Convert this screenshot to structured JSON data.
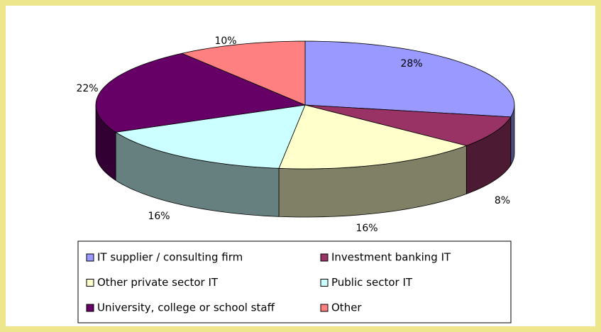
{
  "chart_data": {
    "type": "pie3d",
    "categories": [
      "IT supplier / consulting firm",
      "Investment banking IT",
      "Other private sector IT",
      "Public sector IT",
      "University, college or school staff",
      "Other"
    ],
    "values": [
      28,
      8,
      16,
      16,
      22,
      10
    ],
    "value_labels": [
      "28%",
      "8%",
      "16%",
      "16%",
      "22%",
      "10%"
    ],
    "colors": [
      "#9999ff",
      "#993366",
      "#ffffcc",
      "#ccffff",
      "#660066",
      "#ff8080"
    ],
    "legend": "bottom"
  }
}
